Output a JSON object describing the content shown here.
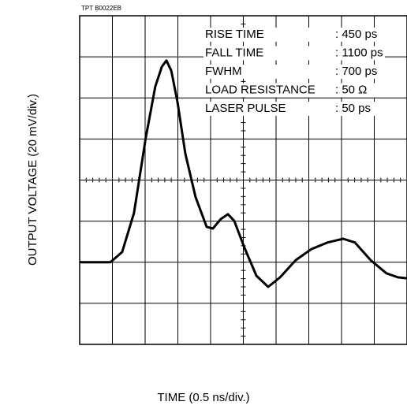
{
  "chart_data": {
    "type": "line",
    "source_label": "TPT B0022EB",
    "x_label": "TIME (0.5 ns/div.)",
    "y_label": "OUTPUT VOLTAGE (20 mV/div.)",
    "annotations": [
      {
        "label": "RISE TIME",
        "value": ": 450 ps"
      },
      {
        "label": "FALL TIME",
        "value": ": 1100 ps"
      },
      {
        "label": "FWHM",
        "value": ": 700 ps"
      },
      {
        "label": "LOAD RESISTANCE",
        "value": ": 50 Ω"
      },
      {
        "label": "LASER PULSE",
        "value": ": 50 ps"
      }
    ],
    "xlim": [
      0,
      10
    ],
    "ylim": [
      0,
      8
    ],
    "xticks": [
      0,
      1,
      2,
      3,
      4,
      5,
      6,
      7,
      8,
      9,
      10
    ],
    "yticks": [
      0,
      1,
      2,
      3,
      4,
      5,
      6,
      7,
      8
    ],
    "grid": true,
    "series": [
      {
        "color": "#000000",
        "x": [
          0,
          0.94,
          1.3,
          1.66,
          2.02,
          2.31,
          2.51,
          2.65,
          2.8,
          2.99,
          3.23,
          3.54,
          3.88,
          4.07,
          4.31,
          4.53,
          4.72,
          5.04,
          5.4,
          5.76,
          6.12,
          6.6,
          7.08,
          7.57,
          8.05,
          8.41,
          8.89,
          9.37,
          9.73,
          10
        ],
        "values": [
          2.0,
          2.0,
          2.25,
          3.2,
          5.03,
          6.28,
          6.76,
          6.91,
          6.66,
          5.89,
          4.64,
          3.59,
          2.86,
          2.82,
          3.05,
          3.17,
          3.01,
          2.34,
          1.67,
          1.4,
          1.63,
          2.05,
          2.32,
          2.48,
          2.57,
          2.48,
          2.05,
          1.73,
          1.63,
          1.61
        ]
      }
    ]
  }
}
